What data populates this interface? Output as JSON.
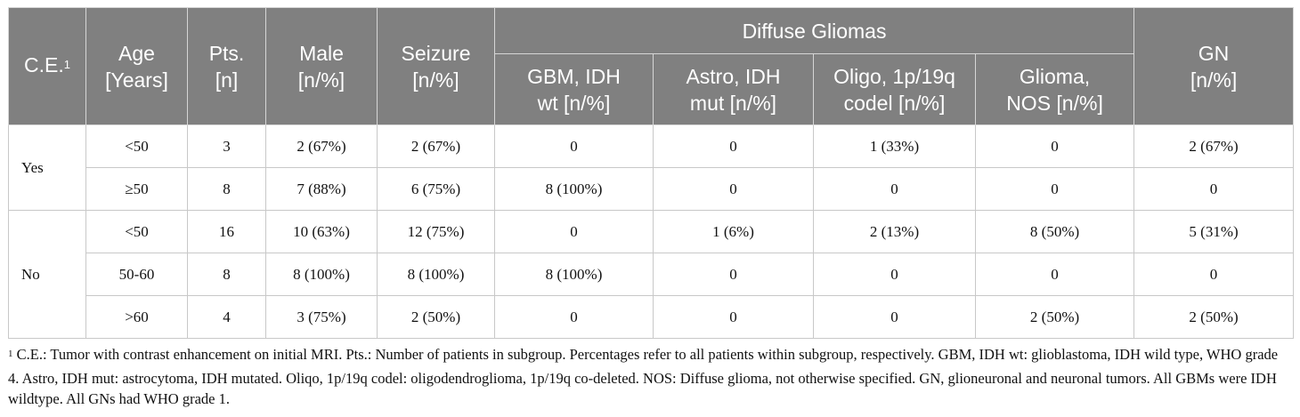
{
  "header": {
    "ce": "C.E.",
    "ce_sup": "1",
    "age_line1": "Age",
    "age_line2": "[Years]",
    "pts_line1": "Pts.",
    "pts_line2": "[n]",
    "male_line1": "Male",
    "male_line2": "[n/%]",
    "seizure_line1": "Seizure",
    "seizure_line2": "[n/%]",
    "group": "Diffuse Gliomas",
    "gbm_line1": "GBM, IDH",
    "gbm_line2": "wt [n/%]",
    "astro_line1": "Astro, IDH",
    "astro_line2": "mut [n/%]",
    "oligo_line1": "Oligo, 1p/19q",
    "oligo_line2": "codel [n/%]",
    "nos_line1": "Glioma,",
    "nos_line2": "NOS [n/%]",
    "gn_line1": "GN",
    "gn_line2": "[n/%]"
  },
  "groups": [
    {
      "label": "Yes",
      "rows": [
        {
          "age": "<50",
          "pts": "3",
          "male": "2 (67%)",
          "seizure": "2 (67%)",
          "gbm": "0",
          "astro": "0",
          "oligo": "1 (33%)",
          "nos": "0",
          "gn": "2 (67%)"
        },
        {
          "age": "≥50",
          "pts": "8",
          "male": "7 (88%)",
          "seizure": "6 (75%)",
          "gbm": "8 (100%)",
          "astro": "0",
          "oligo": "0",
          "nos": "0",
          "gn": "0"
        }
      ]
    },
    {
      "label": "No",
      "rows": [
        {
          "age": "<50",
          "pts": "16",
          "male": "10 (63%)",
          "seizure": "12 (75%)",
          "gbm": "0",
          "astro": "1 (6%)",
          "oligo": "2 (13%)",
          "nos": "8 (50%)",
          "gn": "5 (31%)"
        },
        {
          "age": "50-60",
          "pts": "8",
          "male": "8 (100%)",
          "seizure": "8 (100%)",
          "gbm": "8 (100%)",
          "astro": "0",
          "oligo": "0",
          "nos": "0",
          "gn": "0"
        },
        {
          "age": ">60",
          "pts": "4",
          "male": "3 (75%)",
          "seizure": "2 (50%)",
          "gbm": "0",
          "astro": "0",
          "oligo": "0",
          "nos": "2 (50%)",
          "gn": "2 (50%)"
        }
      ]
    }
  ],
  "footnote": {
    "sup": "1",
    "text": " C.E.: Tumor with contrast enhancement on initial MRI. Pts.: Number of patients in subgroup. Percentages refer to all patients within subgroup, respectively. GBM, IDH wt: glioblastoma, IDH wild type, WHO grade 4. Astro, IDH mut: astrocytoma, IDH mutated. Oliqo, 1p/19q codel: oligodendroglioma, 1p/19q co-deleted. NOS: Diffuse glioma, not otherwise specified. GN, glioneuronal and neuronal tumors. All GBMs were IDH wildtype. All GNs had WHO grade 1."
  }
}
